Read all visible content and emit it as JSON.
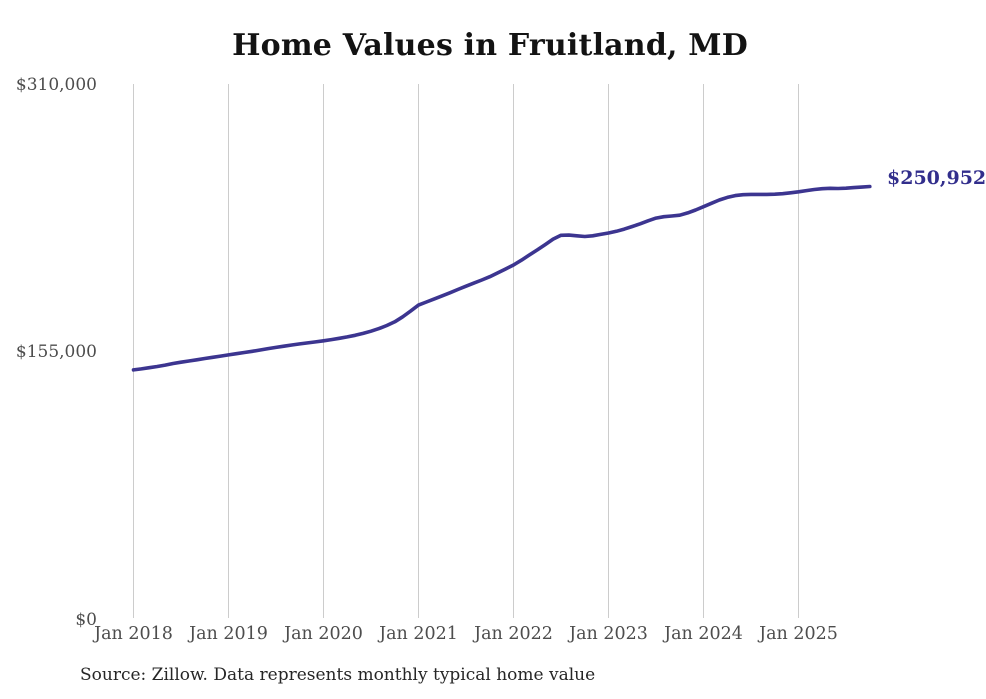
{
  "title": "Home Values in Fruitland, MD",
  "source_note": "Source: Zillow. Data represents monthly typical home value",
  "colors": {
    "line": "#3c3590",
    "end-label": "#322e8c",
    "grid": "#cccccc",
    "axis-text": "#4d4d4d",
    "title-text": "#131313",
    "source-text": "#262626"
  },
  "chart_data": {
    "type": "line",
    "title": "Home Values in Fruitland, MD",
    "xlabel": "",
    "ylabel": "",
    "ylim": [
      0,
      310000
    ],
    "y_ticks": [
      "$310,000",
      "$155,000",
      "$0"
    ],
    "x_ticks": [
      "Jan 2018",
      "Jan 2019",
      "Jan 2020",
      "Jan 2021",
      "Jan 2022",
      "Jan 2023",
      "Jan 2024",
      "Jan 2025"
    ],
    "grid": "vertical-only",
    "legend": "none",
    "frequency": "monthly",
    "start_month": "2018-01",
    "end_month": "2025-10",
    "end_value_label": "$250,952",
    "final_value": 250952,
    "series": [
      {
        "name": "Typical home value",
        "values": [
          144300,
          144900,
          145600,
          146300,
          147100,
          148000,
          148800,
          149500,
          150200,
          150900,
          151600,
          152300,
          153000,
          153700,
          154400,
          155100,
          155900,
          156700,
          157400,
          158100,
          158800,
          159400,
          160000,
          160600,
          161200,
          161900,
          162700,
          163500,
          164400,
          165500,
          166800,
          168300,
          170100,
          172300,
          175200,
          178500,
          182000,
          183800,
          185600,
          187400,
          189200,
          191100,
          193000,
          194800,
          196600,
          198500,
          200700,
          203000,
          205300,
          208100,
          211100,
          214100,
          217200,
          220400,
          222600,
          222700,
          222300,
          221900,
          222300,
          223100,
          223900,
          224900,
          226200,
          227700,
          229300,
          231000,
          232600,
          233400,
          233800,
          234300,
          235600,
          237300,
          239200,
          241200,
          243100,
          244600,
          245700,
          246200,
          246400,
          246400,
          246400,
          246500,
          246800,
          247300,
          247900,
          248600,
          249200,
          249700,
          249900,
          249800,
          250000,
          250300,
          250600,
          250952
        ]
      }
    ]
  }
}
